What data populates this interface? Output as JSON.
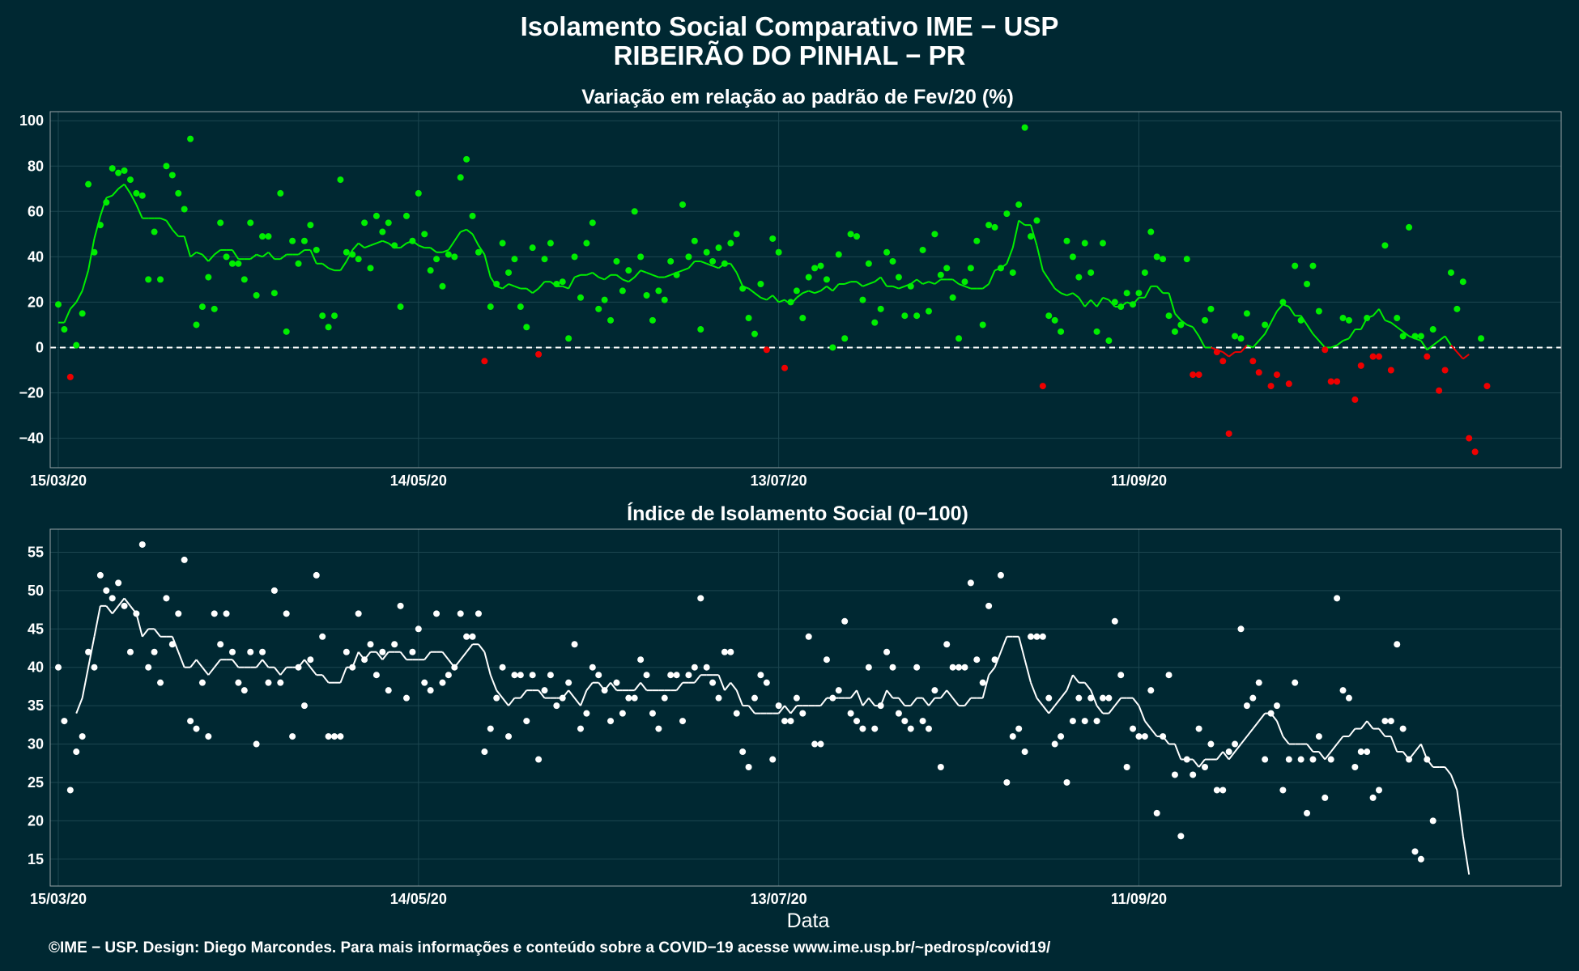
{
  "title": {
    "line1": "Isolamento Social Comparativo IME − USP",
    "line2": "RIBEIRÃO DO PINHAL − PR"
  },
  "footer": "©IME − USP. Design: Diego Marcondes. Para mais informações e conteúdo sobre a COVID−19 acesse www.ime.usp.br/~pedrosp/covid19/",
  "colors": {
    "background": "#002832",
    "positive": "#00ee00",
    "negative": "#ee0000",
    "index": "#ffffff",
    "grid": "#1c4650",
    "panel_border": "#9aa5a8"
  },
  "chart_data": [
    {
      "type": "scatter",
      "title": "Variação em relação ao padrão de Fev/20 (%)",
      "xlabel": "",
      "ylabel": "",
      "x_start": "15/03/20",
      "x_end": "19/11/20",
      "xticks": [
        "15/03/20",
        "14/05/20",
        "13/07/20",
        "11/09/20"
      ],
      "yticks": [
        -40,
        -20,
        0,
        20,
        40,
        60,
        80,
        100
      ],
      "ylim": [
        -53,
        104
      ],
      "reference_line": 0,
      "grid": true,
      "series": [
        {
          "kind": "points",
          "values": [
            19,
            8,
            -13,
            1,
            15,
            72,
            42,
            54,
            64,
            79,
            77,
            78,
            74,
            68,
            67,
            30,
            51,
            30,
            80,
            76,
            68,
            61,
            92,
            10,
            18,
            31,
            17,
            55,
            40,
            37,
            37,
            30,
            55,
            23,
            49,
            49,
            24,
            68,
            7,
            47,
            37,
            47,
            54,
            43,
            14,
            9,
            14,
            74,
            42,
            41,
            39,
            55,
            35,
            58,
            51,
            55,
            45,
            18,
            58,
            47,
            68,
            50,
            34,
            39,
            27,
            41,
            40,
            75,
            83,
            58,
            42,
            -6,
            18,
            28,
            46,
            33,
            39,
            18,
            9,
            44,
            -3,
            39,
            46,
            28,
            29,
            4,
            40,
            22,
            46,
            55,
            17,
            21,
            12,
            38,
            25,
            34,
            60,
            40,
            23,
            12,
            25,
            21,
            38,
            32,
            63,
            40,
            47,
            8,
            42,
            38,
            44,
            37,
            46,
            50,
            26,
            13,
            6,
            28,
            -1,
            48,
            42,
            -9,
            20,
            25,
            13,
            31,
            35,
            36,
            30,
            0,
            41,
            4,
            50,
            49,
            21,
            37,
            11,
            17,
            42,
            38,
            31,
            14,
            27,
            14,
            43,
            16,
            50,
            32,
            35,
            22,
            4,
            29,
            35,
            47,
            10,
            54,
            53,
            35,
            59,
            33,
            63,
            97,
            49,
            56,
            -17,
            14,
            12,
            7,
            47,
            40,
            31,
            46,
            33,
            7,
            46,
            3,
            20,
            18,
            24,
            19,
            24,
            33,
            51,
            40,
            39,
            14,
            7,
            10,
            39,
            -12,
            -12,
            12,
            17,
            -2,
            -6,
            -38,
            5,
            4,
            15,
            -6,
            -11,
            10,
            -17,
            -12,
            20,
            -16,
            36,
            12,
            28,
            36,
            16,
            -1,
            -15,
            -15,
            13,
            12,
            -23,
            -8,
            13,
            -4,
            -4,
            45,
            -10,
            13,
            5,
            53,
            5,
            5,
            -4,
            8,
            -19,
            -10,
            33,
            17,
            29,
            -40,
            -46,
            4,
            -17
          ]
        },
        {
          "kind": "moving_average",
          "values": [
            11,
            11,
            17,
            20,
            25,
            34,
            48,
            58,
            66,
            67,
            70,
            72,
            68,
            63,
            57,
            57,
            57,
            57,
            56,
            52,
            49,
            49,
            40,
            42,
            41,
            38,
            41,
            43,
            43,
            43,
            39,
            39,
            39,
            41,
            40,
            42,
            39,
            39,
            41,
            41,
            41,
            43,
            43,
            37,
            37,
            35,
            34,
            34,
            38,
            43,
            46,
            44,
            45,
            46,
            47,
            46,
            44,
            44,
            46,
            47,
            45,
            44,
            44,
            42,
            42,
            43,
            47,
            51,
            52,
            50,
            45,
            41,
            31,
            27,
            26,
            28,
            27,
            26,
            26,
            24,
            26,
            29,
            29,
            27,
            27,
            26,
            31,
            32,
            32,
            33,
            31,
            30,
            32,
            32,
            30,
            29,
            31,
            34,
            33,
            32,
            31,
            31,
            32,
            33,
            34,
            35,
            38,
            38,
            37,
            36,
            35,
            37,
            37,
            33,
            27,
            26,
            24,
            22,
            21,
            23,
            20,
            21,
            19,
            22,
            24,
            25,
            24,
            25,
            27,
            25,
            28,
            28,
            29,
            29,
            27,
            28,
            29,
            31,
            27,
            27,
            26,
            27,
            28,
            30,
            28,
            29,
            28,
            30,
            30,
            30,
            28,
            27,
            26,
            26,
            26,
            28,
            34,
            35,
            37,
            44,
            56,
            54,
            54,
            45,
            34,
            30,
            26,
            24,
            23,
            24,
            22,
            18,
            21,
            18,
            22,
            21,
            18,
            18,
            20,
            19,
            22,
            22,
            27,
            27,
            24,
            24,
            15,
            12,
            10,
            9,
            5,
            0,
            0,
            -1,
            -2,
            -4,
            -2,
            -2,
            1,
            0,
            3,
            6,
            11,
            16,
            19,
            18,
            14,
            14,
            10,
            6,
            3,
            0,
            0,
            1,
            3,
            4,
            8,
            8,
            13,
            14,
            17,
            12,
            11,
            9,
            7,
            5,
            4,
            3,
            -1,
            1,
            3,
            5,
            1,
            -2,
            -5,
            -3
          ]
        }
      ]
    },
    {
      "type": "scatter",
      "title": "Índice de Isolamento Social (0−100)",
      "xlabel": "Data",
      "ylabel": "",
      "x_start": "15/03/20",
      "x_end": "19/11/20",
      "xticks": [
        "15/03/20",
        "14/05/20",
        "13/07/20",
        "11/09/20"
      ],
      "yticks": [
        15,
        20,
        25,
        30,
        35,
        40,
        45,
        50,
        55
      ],
      "ylim": [
        11.5,
        58
      ],
      "grid": true,
      "series": [
        {
          "kind": "points",
          "values": [
            40,
            33,
            24,
            29,
            31,
            42,
            40,
            52,
            50,
            49,
            51,
            48,
            42,
            47,
            56,
            40,
            42,
            38,
            49,
            43,
            47,
            54,
            33,
            32,
            38,
            31,
            47,
            43,
            47,
            42,
            38,
            37,
            42,
            30,
            42,
            38,
            50,
            38,
            47,
            31,
            40,
            35,
            41,
            52,
            44,
            31,
            31,
            31,
            42,
            40,
            47,
            41,
            43,
            39,
            42,
            37,
            43,
            48,
            36,
            42,
            45,
            38,
            37,
            47,
            38,
            39,
            40,
            47,
            44,
            44,
            47,
            29,
            32,
            36,
            40,
            31,
            39,
            39,
            33,
            39,
            28,
            37,
            39,
            35,
            36,
            38,
            43,
            32,
            34,
            40,
            39,
            37,
            33,
            38,
            34,
            36,
            36,
            41,
            39,
            34,
            32,
            36,
            39,
            39,
            33,
            39,
            40,
            49,
            40,
            38,
            36,
            42,
            42,
            34,
            29,
            27,
            36,
            39,
            38,
            28,
            35,
            33,
            33,
            36,
            34,
            44,
            30,
            30,
            41,
            36,
            37,
            46,
            34,
            33,
            32,
            40,
            32,
            35,
            42,
            40,
            34,
            33,
            32,
            40,
            33,
            32,
            37,
            27,
            43,
            40,
            40,
            40,
            51,
            41,
            38,
            48,
            41,
            52,
            25,
            31,
            32,
            29,
            44,
            44,
            44,
            36,
            30,
            31,
            25,
            33,
            36,
            33,
            36,
            33,
            36,
            36,
            46,
            39,
            27,
            32,
            31,
            31,
            37,
            21,
            31,
            39,
            26,
            18,
            28,
            26,
            32,
            27,
            30,
            24,
            24,
            29,
            30,
            45,
            35,
            36,
            38,
            28,
            34,
            35,
            24,
            28,
            38,
            28,
            21,
            28,
            31,
            23,
            28,
            49,
            37,
            36,
            27,
            29,
            29,
            23,
            24,
            33,
            33,
            43,
            32,
            28,
            16,
            15,
            28,
            20
          ]
        },
        {
          "kind": "moving_average",
          "values": [
            null,
            null,
            null,
            34,
            36,
            40,
            44,
            48,
            48,
            47,
            48,
            49,
            48,
            47,
            44,
            45,
            45,
            44,
            44,
            44,
            42,
            40,
            40,
            41,
            40,
            39,
            40,
            41,
            41,
            41,
            40,
            40,
            40,
            40,
            41,
            40,
            40,
            39,
            40,
            40,
            40,
            41,
            40,
            39,
            39,
            38,
            38,
            38,
            40,
            40,
            42,
            41,
            42,
            42,
            41,
            42,
            42,
            42,
            41,
            41,
            41,
            41,
            42,
            42,
            42,
            41,
            40,
            41,
            42,
            43,
            43,
            42,
            39,
            37,
            36,
            35,
            36,
            36,
            37,
            37,
            37,
            36,
            36,
            36,
            36,
            37,
            36,
            35,
            37,
            38,
            38,
            37,
            38,
            37,
            37,
            37,
            37,
            38,
            37,
            37,
            37,
            37,
            37,
            37,
            38,
            38,
            38,
            39,
            39,
            39,
            39,
            37,
            38,
            37,
            35,
            35,
            34,
            34,
            34,
            34,
            34,
            35,
            34,
            35,
            35,
            35,
            35,
            35,
            36,
            36,
            36,
            36,
            36,
            37,
            35,
            36,
            35,
            35,
            37,
            36,
            36,
            35,
            35,
            36,
            36,
            35,
            36,
            36,
            37,
            36,
            35,
            35,
            36,
            36,
            36,
            39,
            40,
            42,
            44,
            44,
            44,
            41,
            38,
            36,
            35,
            34,
            35,
            36,
            37,
            39,
            38,
            38,
            37,
            35,
            34,
            34,
            35,
            36,
            36,
            36,
            35,
            33,
            32,
            31,
            31,
            30,
            30,
            28,
            28,
            28,
            27,
            28,
            28,
            28,
            29,
            28,
            29,
            30,
            31,
            32,
            33,
            34,
            34,
            33,
            31,
            30,
            30,
            30,
            30,
            29,
            29,
            28,
            29,
            30,
            31,
            31,
            32,
            32,
            33,
            32,
            32,
            31,
            31,
            29,
            29,
            28,
            29,
            30,
            28,
            27,
            27,
            27,
            26,
            24,
            18,
            13
          ]
        }
      ]
    }
  ]
}
